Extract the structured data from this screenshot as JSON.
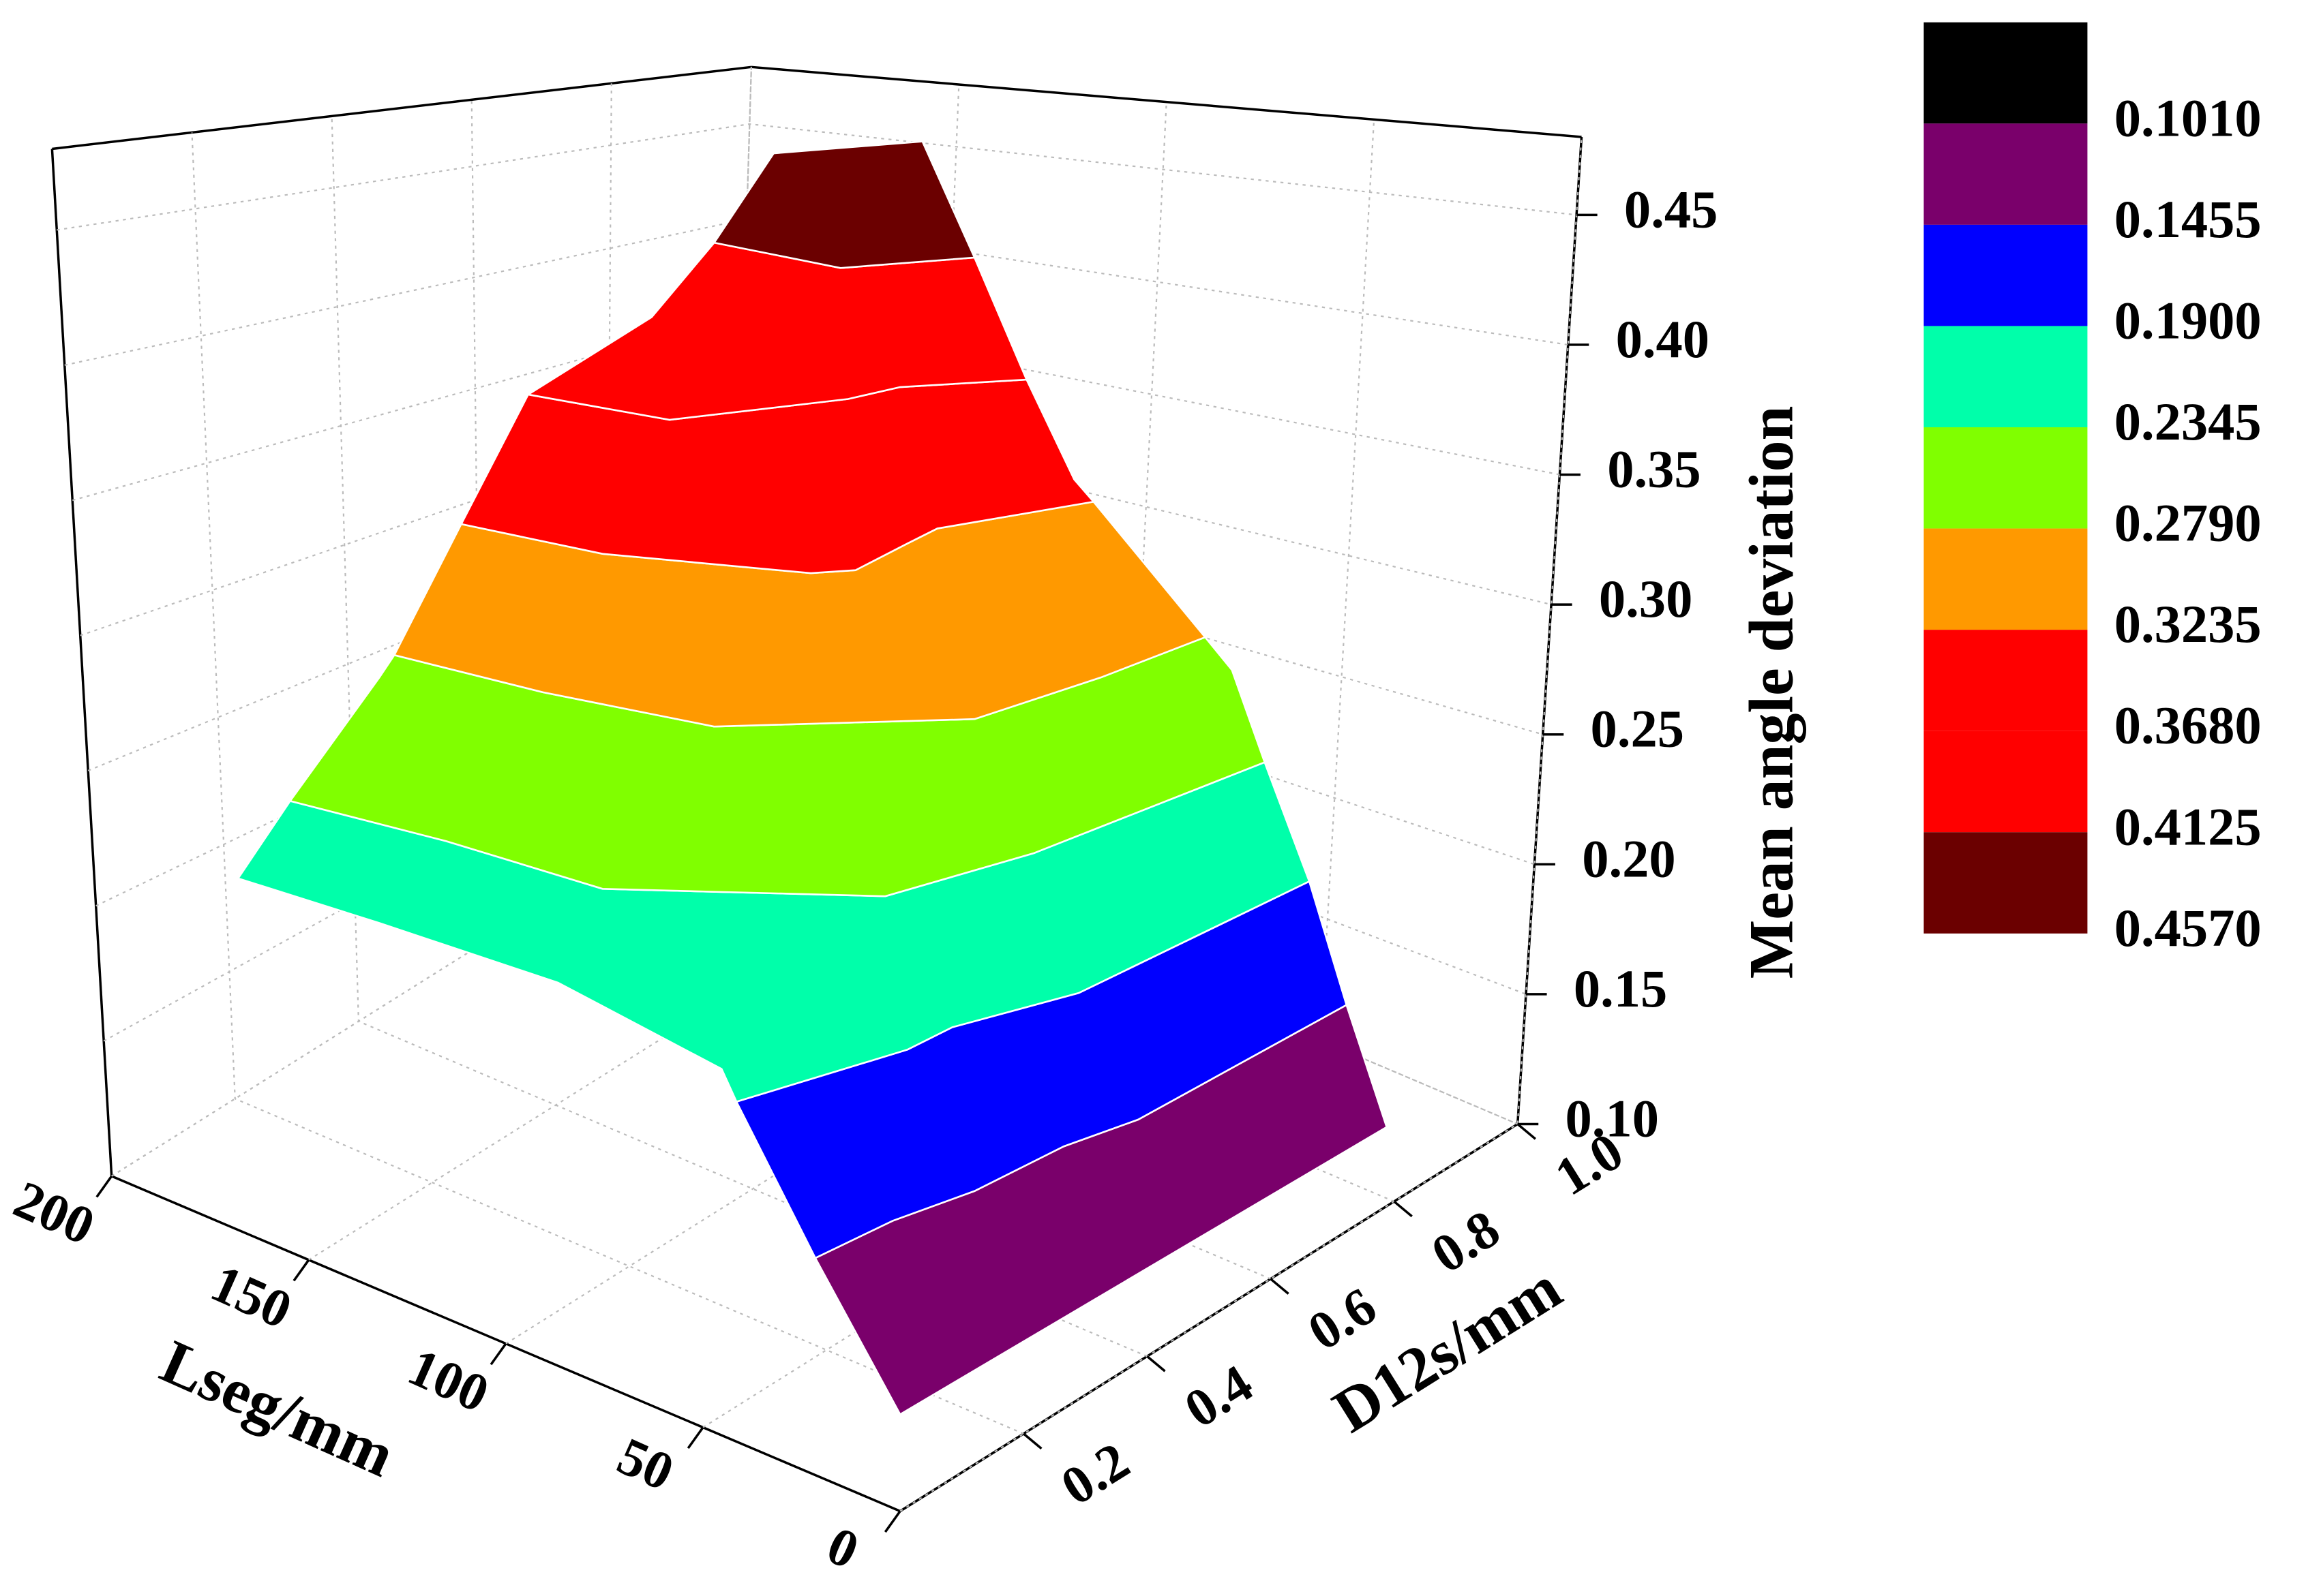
{
  "chart_data": {
    "type": "surface3d",
    "x_label": "Lseg/mm",
    "y_label": "D12s/mm",
    "z_label": "Mean angle deviation",
    "xlim": [
      0,
      200
    ],
    "xticks": [
      0,
      50,
      100,
      150,
      200
    ],
    "ylim": [
      0,
      1
    ],
    "yticks": [
      0.2,
      0.4,
      0.6,
      0.8,
      {
        "value": 1,
        "label": "1.0"
      }
    ],
    "zlim": [
      0.1,
      0.48
    ],
    "zticks": [
      {
        "value": 0.1,
        "label": "0.10"
      },
      0.15,
      {
        "value": 0.2,
        "label": "0.20"
      },
      0.25,
      {
        "value": 0.3,
        "label": "0.30"
      },
      0.35,
      {
        "value": 0.4,
        "label": "0.40"
      },
      0.45
    ],
    "grid": true,
    "colorbar": {
      "levels": [
        {
          "value": 0.101,
          "label": "0.1010"
        },
        0.1455,
        {
          "value": 0.19,
          "label": "0.1900"
        },
        0.2345,
        {
          "value": 0.279,
          "label": "0.2790"
        },
        0.3235,
        {
          "value": 0.368,
          "label": "0.3680"
        },
        0.4125,
        {
          "value": 0.457,
          "label": "0.4570"
        }
      ],
      "colors": [
        "#000000",
        "#7a006b",
        "#0000ff",
        "#00ffaa",
        "#80ff00",
        "#ff9900",
        "#ff0000",
        "#ff0000",
        "#6b0000"
      ]
    }
  }
}
